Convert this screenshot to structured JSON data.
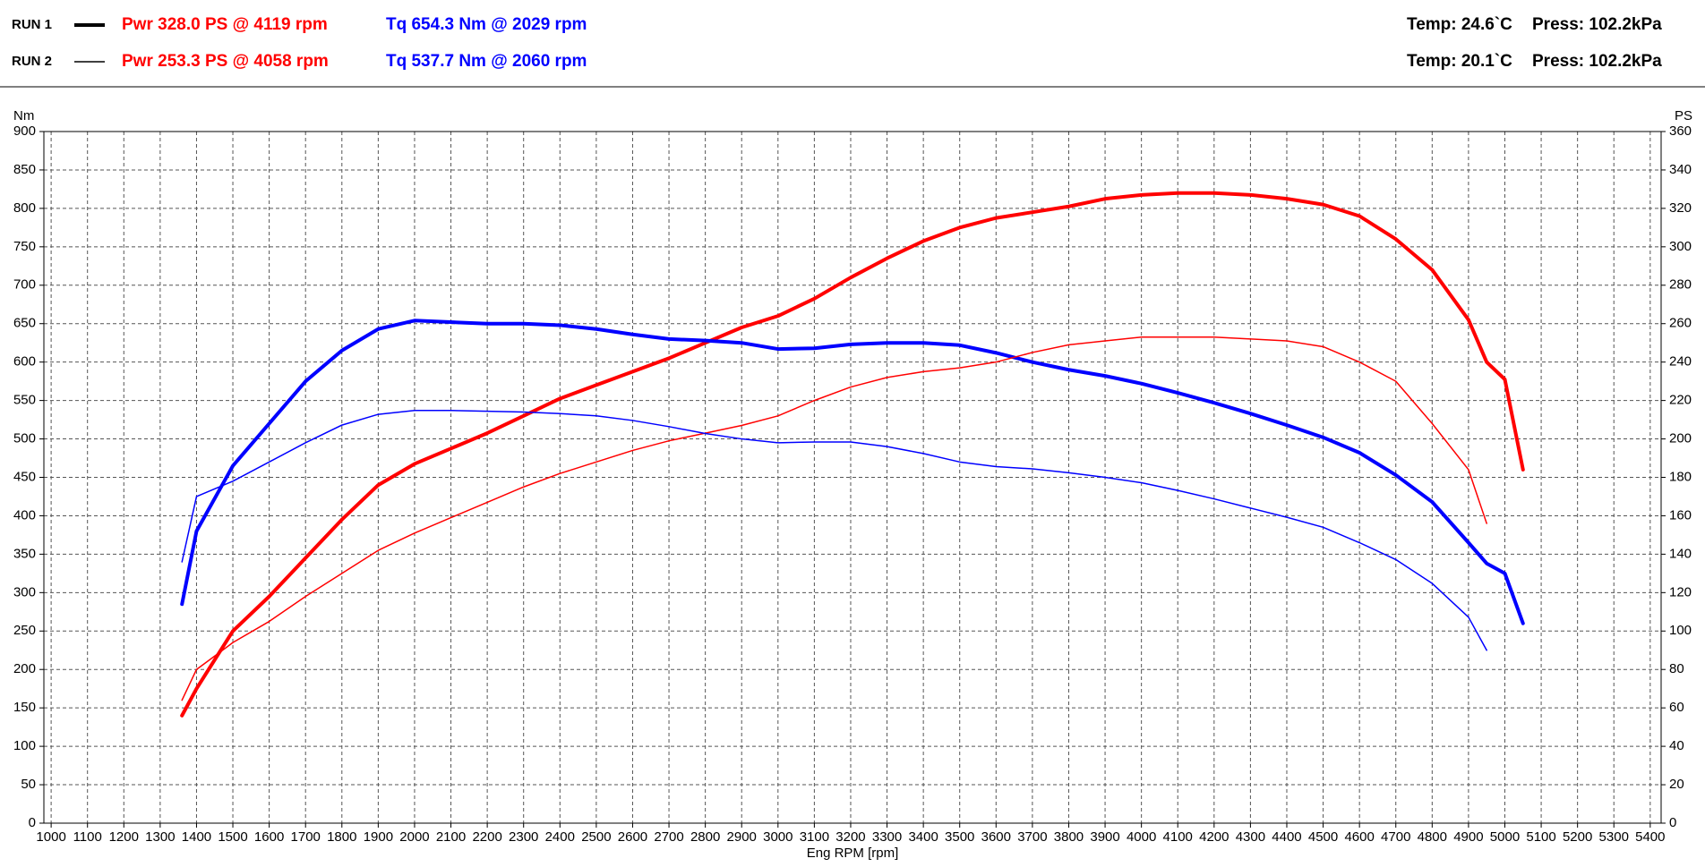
{
  "chart_data": {
    "type": "line",
    "x_label": "Eng RPM [rpm]",
    "y_label": "Nm",
    "y2_label": "PS",
    "grid": true,
    "runs": [
      {
        "label": "RUN 1",
        "width": 4,
        "temp": "Temp: 24.6`C",
        "press": "Press: 102.2kPa"
      },
      {
        "label": "RUN 2",
        "width": 1.5,
        "temp": "Temp: 20.1`C",
        "press": "Press: 102.2kPa"
      }
    ],
    "x": [
      1360,
      1400,
      1500,
      1600,
      1700,
      1800,
      1900,
      2000,
      2100,
      2200,
      2300,
      2400,
      2500,
      2600,
      2700,
      2800,
      2900,
      3000,
      3100,
      3200,
      3300,
      3400,
      3500,
      3600,
      3700,
      3800,
      3900,
      4000,
      4100,
      4200,
      4300,
      4400,
      4500,
      4600,
      4700,
      4800,
      4900,
      4950,
      5000,
      5050
    ],
    "series": [
      {
        "name": "Pwr  328.0 PS @ 4119 rpm",
        "run": 0,
        "axis": "y2",
        "color": "#ff0000",
        "values": [
          56,
          70,
          100,
          118,
          138,
          158,
          176,
          187,
          195,
          203,
          212,
          221,
          228,
          235,
          242,
          250,
          258,
          264,
          273,
          284,
          294,
          303,
          310,
          315,
          318,
          321,
          325,
          327,
          328,
          328,
          327,
          325,
          322,
          316,
          304,
          288,
          262,
          240,
          231,
          184
        ]
      },
      {
        "name": "Tq 654.3 Nm @ 2029 rpm",
        "run": 0,
        "color": "#0000ff",
        "values": [
          285,
          380,
          465,
          520,
          575,
          615,
          643,
          654,
          652,
          650,
          650,
          648,
          643,
          636,
          630,
          628,
          625,
          617,
          618,
          623,
          625,
          625,
          622,
          612,
          600,
          590,
          582,
          572,
          560,
          547,
          533,
          518,
          502,
          482,
          453,
          418,
          365,
          338,
          325,
          260
        ]
      },
      {
        "name": "Pwr  253.3 PS @ 4058 rpm",
        "run": 1,
        "axis": "y2",
        "color": "#ff0000",
        "values": [
          64,
          80,
          94,
          105,
          118,
          130,
          142,
          151,
          159,
          167,
          175,
          182,
          188,
          194,
          199,
          203,
          207,
          212,
          220,
          227,
          232,
          235,
          237,
          240,
          245,
          249,
          251,
          253,
          253,
          253,
          252,
          251,
          248,
          240,
          230,
          208,
          184,
          156,
          null,
          null
        ]
      },
      {
        "name": "Tq 537.7 Nm @ 2060 rpm",
        "run": 1,
        "color": "#0000ff",
        "values": [
          340,
          425,
          445,
          470,
          495,
          518,
          532,
          537,
          537,
          536,
          535,
          533,
          530,
          524,
          516,
          507,
          500,
          495,
          496,
          496,
          490,
          481,
          470,
          464,
          461,
          456,
          450,
          443,
          433,
          422,
          410,
          398,
          385,
          365,
          343,
          312,
          268,
          225,
          null,
          null
        ]
      }
    ],
    "xlim": [
      980,
      5430
    ],
    "xticks": [
      1000,
      1100,
      1200,
      1300,
      1400,
      1500,
      1600,
      1700,
      1800,
      1900,
      2000,
      2100,
      2200,
      2300,
      2400,
      2500,
      2600,
      2700,
      2800,
      2900,
      3000,
      3100,
      3200,
      3300,
      3400,
      3500,
      3600,
      3700,
      3800,
      3900,
      4000,
      4100,
      4200,
      4300,
      4400,
      4500,
      4600,
      4700,
      4800,
      4900,
      5000,
      5100,
      5200,
      5300,
      5400
    ],
    "ylim": [
      0,
      900
    ],
    "yticks": [
      0,
      50,
      100,
      150,
      200,
      250,
      300,
      350,
      400,
      450,
      500,
      550,
      600,
      650,
      700,
      750,
      800,
      850,
      900
    ],
    "y2lim": [
      0,
      360
    ],
    "y2ticks": [
      0,
      20,
      40,
      60,
      80,
      100,
      120,
      140,
      160,
      180,
      200,
      220,
      240,
      260,
      280,
      300,
      320,
      340,
      360
    ]
  }
}
